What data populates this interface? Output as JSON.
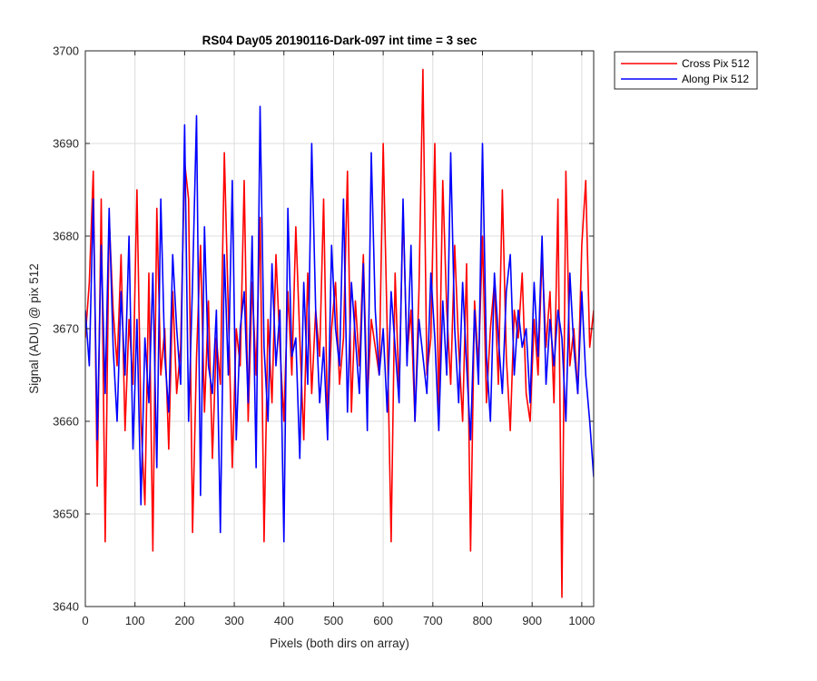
{
  "chart_data": {
    "type": "line",
    "title": "RS04 Day05 20190116-Dark-097 int time = 3 sec",
    "xlabel": "Pixels (both dirs on array)",
    "ylabel": "Signal (ADU) @ pix 512",
    "xlim": [
      0,
      1024
    ],
    "ylim": [
      3640,
      3700
    ],
    "xticks": [
      0,
      100,
      200,
      300,
      400,
      500,
      600,
      700,
      800,
      900,
      1000
    ],
    "yticks": [
      3640,
      3650,
      3660,
      3670,
      3680,
      3690,
      3700
    ],
    "grid": true,
    "legend_position": "outside-top-right",
    "series": [
      {
        "name": "Cross Pix 512",
        "color": "#ff0000",
        "x": [
          0,
          8,
          16,
          24,
          32,
          40,
          48,
          56,
          64,
          72,
          80,
          88,
          96,
          104,
          112,
          120,
          128,
          136,
          144,
          152,
          160,
          168,
          176,
          184,
          192,
          200,
          208,
          216,
          224,
          232,
          240,
          248,
          256,
          264,
          272,
          280,
          288,
          296,
          304,
          312,
          320,
          328,
          336,
          344,
          352,
          360,
          368,
          376,
          384,
          392,
          400,
          408,
          416,
          424,
          432,
          440,
          448,
          456,
          464,
          472,
          480,
          488,
          496,
          504,
          512,
          520,
          528,
          536,
          544,
          552,
          560,
          568,
          576,
          584,
          592,
          600,
          608,
          616,
          624,
          632,
          640,
          648,
          656,
          664,
          672,
          680,
          688,
          696,
          704,
          712,
          720,
          728,
          736,
          744,
          752,
          760,
          768,
          776,
          784,
          792,
          800,
          808,
          816,
          824,
          832,
          840,
          848,
          856,
          864,
          872,
          880,
          888,
          896,
          904,
          912,
          920,
          928,
          936,
          944,
          952,
          960,
          968,
          976,
          984,
          992,
          1000,
          1008,
          1016,
          1024
        ],
        "y": [
          3669,
          3675,
          3687,
          3653,
          3684,
          3647,
          3682,
          3672,
          3666,
          3678,
          3659,
          3671,
          3664,
          3685,
          3660,
          3651,
          3676,
          3646,
          3683,
          3665,
          3670,
          3657,
          3674,
          3663,
          3668,
          3688,
          3684,
          3648,
          3667,
          3679,
          3661,
          3673,
          3656,
          3669,
          3664,
          3689,
          3672,
          3655,
          3670,
          3666,
          3686,
          3660,
          3675,
          3665,
          3682,
          3647,
          3671,
          3662,
          3678,
          3668,
          3660,
          3674,
          3665,
          3681,
          3669,
          3658,
          3676,
          3663,
          3672,
          3667,
          3684,
          3659,
          3670,
          3675,
          3664,
          3669,
          3687,
          3661,
          3673,
          3666,
          3678,
          3662,
          3671,
          3668,
          3665,
          3690,
          3670,
          3647,
          3676,
          3663,
          3683,
          3667,
          3672,
          3660,
          3674,
          3698,
          3665,
          3669,
          3690,
          3661,
          3686,
          3672,
          3664,
          3679,
          3668,
          3660,
          3677,
          3646,
          3673,
          3666,
          3680,
          3662,
          3670,
          3675,
          3664,
          3685,
          3667,
          3659,
          3672,
          3669,
          3676,
          3663,
          3660,
          3671,
          3665,
          3678,
          3668,
          3674,
          3662,
          3684,
          3641,
          3687,
          3666,
          3670,
          3663,
          3679,
          3686,
          3668,
          3672
        ]
      },
      {
        "name": "Along Pix 512",
        "color": "#0000ff",
        "x": [
          0,
          8,
          16,
          24,
          32,
          40,
          48,
          56,
          64,
          72,
          80,
          88,
          96,
          104,
          112,
          120,
          128,
          136,
          144,
          152,
          160,
          168,
          176,
          184,
          192,
          200,
          208,
          216,
          224,
          232,
          240,
          248,
          256,
          264,
          272,
          280,
          288,
          296,
          304,
          312,
          320,
          328,
          336,
          344,
          352,
          360,
          368,
          376,
          384,
          392,
          400,
          408,
          416,
          424,
          432,
          440,
          448,
          456,
          464,
          472,
          480,
          488,
          496,
          504,
          512,
          520,
          528,
          536,
          544,
          552,
          560,
          568,
          576,
          584,
          592,
          600,
          608,
          616,
          624,
          632,
          640,
          648,
          656,
          664,
          672,
          680,
          688,
          696,
          704,
          712,
          720,
          728,
          736,
          744,
          752,
          760,
          768,
          776,
          784,
          792,
          800,
          808,
          816,
          824,
          832,
          840,
          848,
          856,
          864,
          872,
          880,
          888,
          896,
          904,
          912,
          920,
          928,
          936,
          944,
          952,
          960,
          968,
          976,
          984,
          992,
          1000,
          1008,
          1016,
          1024
        ],
        "y": [
          3672,
          3666,
          3684,
          3658,
          3679,
          3663,
          3683,
          3668,
          3660,
          3674,
          3665,
          3680,
          3657,
          3671,
          3651,
          3669,
          3662,
          3676,
          3655,
          3684,
          3667,
          3661,
          3678,
          3670,
          3664,
          3692,
          3660,
          3675,
          3693,
          3652,
          3681,
          3666,
          3663,
          3672,
          3648,
          3678,
          3665,
          3686,
          3658,
          3670,
          3674,
          3662,
          3680,
          3655,
          3694,
          3668,
          3660,
          3677,
          3666,
          3672,
          3647,
          3683,
          3667,
          3669,
          3656,
          3675,
          3664,
          3690,
          3672,
          3662,
          3668,
          3658,
          3679,
          3670,
          3666,
          3684,
          3661,
          3675,
          3669,
          3663,
          3677,
          3659,
          3689,
          3672,
          3665,
          3670,
          3661,
          3674,
          3668,
          3662,
          3684,
          3666,
          3679,
          3660,
          3671,
          3667,
          3663,
          3676,
          3669,
          3659,
          3673,
          3665,
          3689,
          3670,
          3662,
          3675,
          3666,
          3658,
          3672,
          3664,
          3690,
          3667,
          3660,
          3676,
          3669,
          3663,
          3674,
          3678,
          3665,
          3672,
          3668,
          3670,
          3662,
          3675,
          3667,
          3680,
          3664,
          3671,
          3666,
          3672,
          3669,
          3660,
          3676,
          3668,
          3663,
          3674,
          3665,
          3660,
          3654
        ]
      }
    ]
  }
}
